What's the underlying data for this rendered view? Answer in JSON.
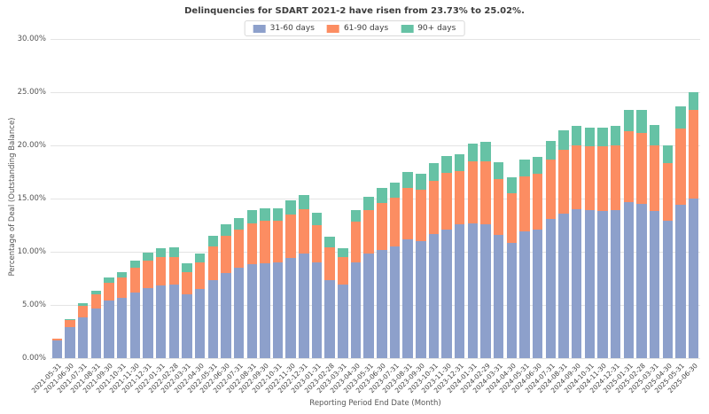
{
  "title": "Delinquencies for SDART 2021-2 have risen from 23.73% to 25.02%.",
  "legend": [
    {
      "label": "31-60 days",
      "color": "#8da0cb"
    },
    {
      "label": "61-90 days",
      "color": "#fc8d62"
    },
    {
      "label": "90+ days",
      "color": "#66c2a5"
    }
  ],
  "chart_data": {
    "type": "bar",
    "stacked": true,
    "title": "Delinquencies for SDART 2021-2 have risen from 23.73% to 25.02%.",
    "xlabel": "Reporting Period End Date (Month)",
    "ylabel": "Percentage of Deal (Outstanding Balance)",
    "ylim": [
      0,
      30
    ],
    "grid": true,
    "legend_position": "top-center",
    "yticks": [
      0,
      5,
      10,
      15,
      20,
      25,
      30
    ],
    "ytick_labels": [
      "0.00%",
      "5.00%",
      "10.00%",
      "15.00%",
      "20.00%",
      "25.00%",
      "30.00%"
    ],
    "categories": [
      "2021-05-31",
      "2021-06-30",
      "2021-07-31",
      "2021-08-31",
      "2021-09-30",
      "2021-10-31",
      "2021-11-30",
      "2021-12-31",
      "2022-01-31",
      "2022-02-28",
      "2022-03-31",
      "2022-04-30",
      "2022-05-31",
      "2022-06-30",
      "2022-07-31",
      "2022-08-31",
      "2022-09-30",
      "2022-10-31",
      "2022-11-30",
      "2022-12-31",
      "2023-01-31",
      "2023-02-28",
      "2023-03-31",
      "2023-04-30",
      "2023-05-31",
      "2023-06-30",
      "2023-07-31",
      "2023-08-31",
      "2023-09-30",
      "2023-10-31",
      "2023-11-30",
      "2023-12-31",
      "2024-01-31",
      "2024-02-29",
      "2024-03-31",
      "2024-04-30",
      "2024-05-31",
      "2024-06-30",
      "2024-07-31",
      "2024-08-31",
      "2024-09-30",
      "2024-10-31",
      "2024-11-30",
      "2024-12-31",
      "2025-01-31",
      "2025-02-28",
      "2025-03-31",
      "2025-04-30",
      "2025-05-31",
      "2025-06-30"
    ],
    "series": [
      {
        "name": "31-60 days",
        "color": "#8da0cb",
        "values": [
          1.7,
          2.9,
          3.8,
          4.7,
          5.4,
          5.7,
          6.2,
          6.6,
          6.8,
          6.9,
          6.0,
          6.5,
          7.3,
          8.0,
          8.5,
          8.8,
          8.9,
          9.0,
          9.4,
          9.8,
          9.0,
          7.3,
          6.9,
          9.0,
          9.8,
          10.2,
          10.5,
          11.2,
          11.0,
          11.7,
          12.1,
          12.6,
          12.7,
          12.6,
          11.6,
          10.8,
          11.9,
          12.1,
          13.1,
          13.6,
          14.0,
          13.9,
          13.8,
          13.9,
          14.7,
          14.5,
          13.8,
          12.9,
          14.4,
          15.0
        ]
      },
      {
        "name": "61-90 days",
        "color": "#fc8d62",
        "values": [
          0.1,
          0.7,
          1.1,
          1.3,
          1.7,
          1.9,
          2.3,
          2.6,
          2.7,
          2.6,
          2.1,
          2.5,
          3.2,
          3.5,
          3.6,
          3.9,
          4.0,
          3.9,
          4.1,
          4.2,
          3.5,
          3.1,
          2.6,
          3.8,
          4.1,
          4.4,
          4.6,
          4.8,
          4.8,
          5.0,
          5.3,
          5.0,
          5.8,
          5.9,
          5.2,
          4.7,
          5.2,
          5.2,
          5.6,
          6.0,
          6.0,
          6.0,
          6.1,
          6.1,
          6.6,
          6.7,
          6.2,
          5.4,
          7.2,
          8.3
        ]
      },
      {
        "name": "90+ days",
        "color": "#66c2a5",
        "values": [
          0.05,
          0.1,
          0.3,
          0.3,
          0.5,
          0.5,
          0.7,
          0.7,
          0.8,
          0.9,
          0.8,
          0.8,
          1.0,
          1.1,
          1.1,
          1.2,
          1.2,
          1.2,
          1.3,
          1.3,
          1.2,
          1.0,
          0.8,
          1.1,
          1.3,
          1.4,
          1.4,
          1.5,
          1.5,
          1.6,
          1.6,
          1.6,
          1.7,
          1.8,
          1.6,
          1.5,
          1.6,
          1.6,
          1.7,
          1.8,
          1.8,
          1.8,
          1.8,
          1.8,
          2.0,
          2.1,
          1.9,
          1.7,
          2.1,
          1.7
        ]
      }
    ],
    "annotations": {
      "previous_total": "23.73%",
      "current_total": "25.02%"
    }
  }
}
